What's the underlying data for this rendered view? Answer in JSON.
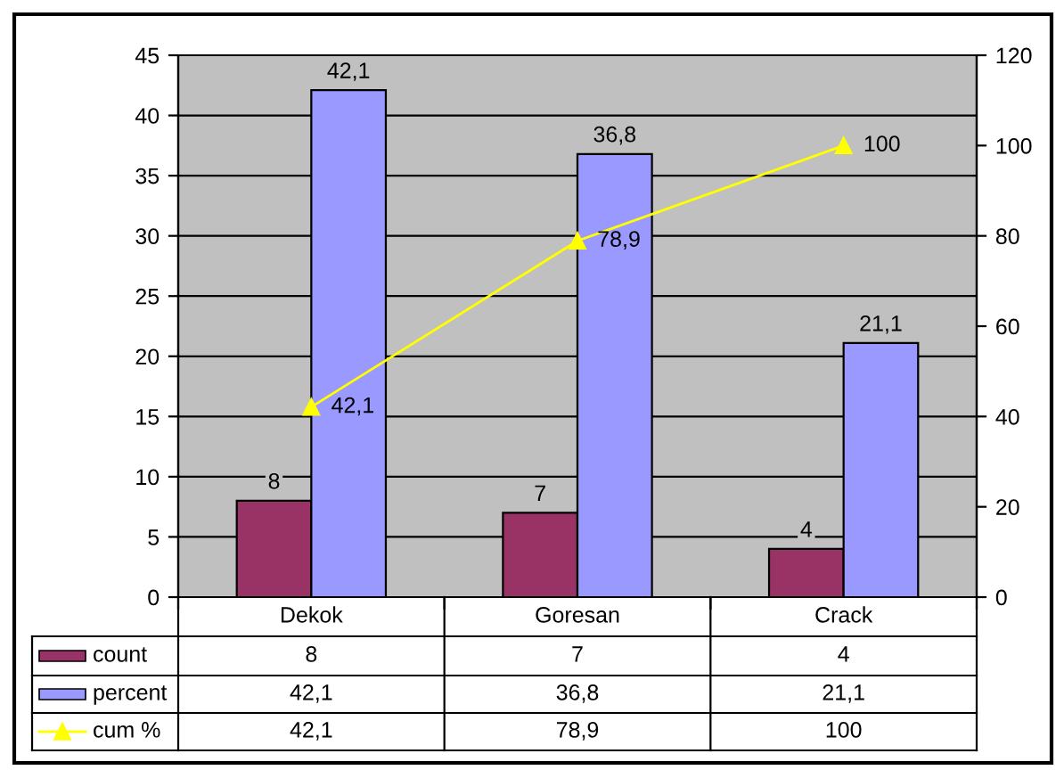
{
  "chart_data": {
    "type": "bar",
    "categories": [
      "Dekok",
      "Goresan",
      "Crack"
    ],
    "series": [
      {
        "name": "count",
        "color": "#993366",
        "values": [
          8,
          7,
          4
        ],
        "value_labels": [
          "8",
          "7",
          "4"
        ]
      },
      {
        "name": "percent",
        "color": "#9999ff",
        "values": [
          42.1,
          36.8,
          21.1
        ],
        "value_labels": [
          "42,1",
          "36,8",
          "21,1"
        ]
      },
      {
        "name": "cum %",
        "type": "line",
        "axis": "y2",
        "color": "#ffff00",
        "marker": "triangle",
        "values": [
          42.1,
          78.9,
          100
        ],
        "value_labels": [
          "42,1",
          "78,9",
          "100"
        ]
      }
    ],
    "ylim": [
      0,
      45
    ],
    "yticks": [
      0,
      5,
      10,
      15,
      20,
      25,
      30,
      35,
      40,
      45
    ],
    "y2lim": [
      0,
      120
    ],
    "y2ticks": [
      0,
      20,
      40,
      60,
      80,
      100,
      120
    ],
    "grid": "y",
    "legend": "bottom"
  }
}
